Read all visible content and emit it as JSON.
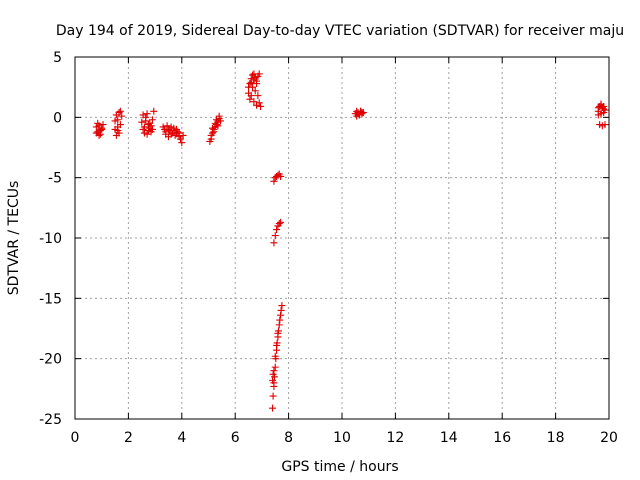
{
  "chart_data": {
    "type": "scatter",
    "title": "Day 194 of 2019, Sidereal Day-to-day VTEC variation (SDTVAR) for receiver maju",
    "xlabel": "GPS time / hours",
    "ylabel": "SDTVAR / TECUs",
    "xlim": [
      0,
      20
    ],
    "ylim": [
      -25,
      5
    ],
    "xticks": [
      "0",
      "2",
      "4",
      "6",
      "8",
      "10",
      "12",
      "14",
      "16",
      "18",
      "20"
    ],
    "yticks": [
      "5",
      "0",
      "-5",
      "-10",
      "-15",
      "-20",
      "-25"
    ],
    "xtick_values": [
      0,
      2,
      4,
      6,
      8,
      10,
      12,
      14,
      16,
      18,
      20
    ],
    "ytick_values": [
      5,
      0,
      -5,
      -10,
      -15,
      -20,
      -25
    ],
    "grid": true,
    "marker": "+",
    "color": "#e00000",
    "series": [
      {
        "name": "SDTVAR",
        "x": [
          0.8,
          0.85,
          0.9,
          0.95,
          1.0,
          1.05,
          0.8,
          0.9,
          1.0,
          0.85,
          0.95,
          1.5,
          1.55,
          1.6,
          1.65,
          1.7,
          1.75,
          1.5,
          1.6,
          1.7,
          1.55,
          1.65,
          1.6,
          2.5,
          2.55,
          2.6,
          2.65,
          2.7,
          2.75,
          2.8,
          2.85,
          2.9,
          2.95,
          2.6,
          2.7,
          2.8,
          2.9,
          2.55,
          2.65,
          2.75,
          2.85,
          3.3,
          3.4,
          3.5,
          3.6,
          3.7,
          3.8,
          3.9,
          4.0,
          4.05,
          3.35,
          3.45,
          3.55,
          3.65,
          3.75,
          3.85,
          3.95,
          3.4,
          3.6,
          3.8,
          3.5,
          3.7,
          3.9,
          5.05,
          5.1,
          5.15,
          5.2,
          5.25,
          5.3,
          5.35,
          5.4,
          5.45,
          5.1,
          5.2,
          5.3,
          5.4,
          5.15,
          5.25,
          5.35,
          6.5,
          6.55,
          6.6,
          6.65,
          6.7,
          6.75,
          6.8,
          6.85,
          6.9,
          6.55,
          6.65,
          6.75,
          6.85,
          6.6,
          6.7,
          6.8,
          6.9,
          6.95,
          6.5,
          6.6,
          6.7,
          6.8,
          7.45,
          7.5,
          7.55,
          7.6,
          7.65,
          7.7,
          7.45,
          7.5,
          7.55,
          7.6,
          7.65,
          7.7,
          7.4,
          7.42,
          7.45,
          7.47,
          7.5,
          7.52,
          7.55,
          7.57,
          7.6,
          7.62,
          7.65,
          7.67,
          7.7,
          7.72,
          7.75,
          7.45,
          7.5,
          7.55,
          7.6,
          7.45,
          7.4,
          7.42,
          10.5,
          10.55,
          10.6,
          10.65,
          10.7,
          10.75,
          10.8,
          10.55,
          10.65,
          10.75,
          10.6,
          10.7,
          19.6,
          19.65,
          19.7,
          19.75,
          19.8,
          19.85,
          19.6,
          19.7,
          19.8,
          19.65,
          19.75,
          19.85,
          19.6,
          19.7,
          19.8
        ],
        "y": [
          -0.8,
          -1.2,
          -0.7,
          -1.4,
          -1.0,
          -0.6,
          -1.3,
          -1.5,
          -0.9,
          -0.5,
          -1.1,
          -0.3,
          0.2,
          -0.8,
          -1.3,
          0.5,
          0.1,
          -1.0,
          -0.2,
          -0.6,
          -1.5,
          0.4,
          -1.1,
          -0.4,
          -1.0,
          -1.3,
          0.0,
          0.3,
          -0.6,
          -0.9,
          -1.2,
          -0.2,
          0.5,
          -0.8,
          -1.4,
          -0.5,
          -1.0,
          0.2,
          -0.3,
          -1.1,
          -0.7,
          -0.8,
          -1.2,
          -1.0,
          -1.4,
          -0.9,
          -1.3,
          -1.6,
          -2.1,
          -1.5,
          -1.0,
          -0.7,
          -1.1,
          -1.3,
          -1.5,
          -1.2,
          -1.8,
          -1.4,
          -0.8,
          -1.0,
          -1.6,
          -1.1,
          -1.3,
          -2.0,
          -1.5,
          -0.9,
          -1.2,
          -0.5,
          -0.2,
          -0.7,
          0.1,
          -0.3,
          -1.8,
          -1.0,
          -0.6,
          -0.1,
          -1.3,
          -0.8,
          -0.4,
          2.0,
          2.8,
          3.2,
          3.5,
          3.6,
          3.3,
          3.0,
          3.4,
          3.6,
          1.5,
          2.5,
          2.2,
          1.8,
          1.8,
          1.3,
          1.0,
          1.2,
          0.9,
          2.5,
          2.9,
          3.1,
          2.8,
          -5.3,
          -5.0,
          -4.9,
          -4.8,
          -4.7,
          -4.9,
          -10.4,
          -9.8,
          -9.3,
          -9.0,
          -8.8,
          -8.7,
          -24.1,
          -23.1,
          -22.3,
          -21.5,
          -20.7,
          -20.0,
          -19.3,
          -18.7,
          -18.2,
          -17.7,
          -17.2,
          -16.8,
          -16.4,
          -16.0,
          -15.6,
          -21.0,
          -19.8,
          -18.9,
          -17.9,
          -22.0,
          -21.8,
          -21.3,
          0.3,
          0.5,
          0.4,
          0.2,
          0.5,
          0.3,
          0.4,
          0.1,
          0.2,
          0.4,
          0.3,
          0.5,
          0.5,
          0.9,
          1.0,
          0.8,
          0.7,
          0.6,
          0.2,
          0.3,
          0.4,
          -0.6,
          -0.7,
          -0.6,
          0.8,
          1.1,
          0.9
        ]
      }
    ]
  }
}
